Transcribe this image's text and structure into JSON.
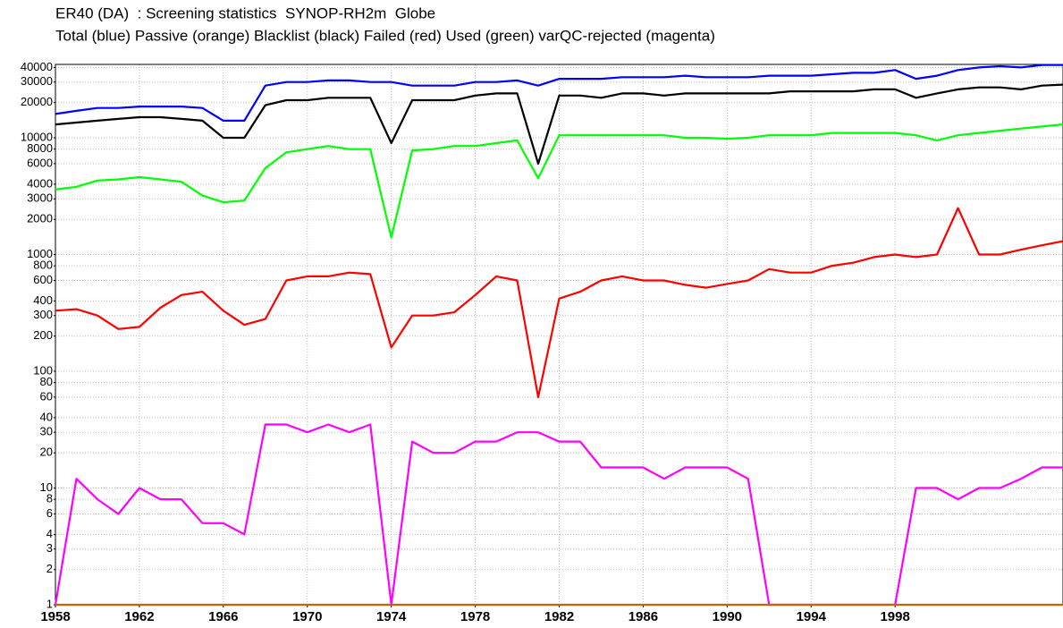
{
  "chart_data": {
    "type": "line",
    "title": "ER40 (DA)  : Screening statistics  SYNOP-RH2m  Globe",
    "subtitle": "Total (blue) Passive (orange) Blacklist (black) Failed (red) Used (green) varQC-rejected (magenta)",
    "log_scale": true,
    "grid": true,
    "xlim": [
      1958,
      2006
    ],
    "ylim": [
      1,
      42500
    ],
    "xticks": [
      1958,
      1962,
      1966,
      1970,
      1974,
      1978,
      1982,
      1986,
      1990,
      1994,
      1998
    ],
    "yticks": [
      1,
      2,
      3,
      4,
      6,
      8,
      10,
      20,
      30,
      40,
      60,
      80,
      100,
      200,
      300,
      400,
      600,
      800,
      1000,
      2000,
      3000,
      4000,
      6000,
      8000,
      10000,
      20000,
      30000,
      40000
    ],
    "x": [
      1958,
      1959,
      1960,
      1961,
      1962,
      1963,
      1964,
      1965,
      1966,
      1967,
      1968,
      1969,
      1970,
      1971,
      1972,
      1973,
      1974,
      1975,
      1976,
      1977,
      1978,
      1979,
      1980,
      1981,
      1982,
      1983,
      1984,
      1985,
      1986,
      1987,
      1988,
      1989,
      1990,
      1991,
      1992,
      1993,
      1994,
      1995,
      1996,
      1997,
      1998,
      1999,
      2000,
      2001,
      2002,
      2003,
      2004,
      2005,
      2006
    ],
    "series": [
      {
        "name": "Total",
        "color": "#0000ff",
        "values": [
          16000,
          17000,
          18000,
          18000,
          18500,
          18500,
          18500,
          18000,
          14000,
          14000,
          28000,
          30000,
          30000,
          31000,
          31000,
          30000,
          30000,
          28000,
          28000,
          28000,
          30000,
          30000,
          31000,
          28000,
          32000,
          32000,
          32000,
          33000,
          33000,
          33000,
          34000,
          33000,
          33000,
          33000,
          34000,
          34000,
          34000,
          35000,
          36000,
          36000,
          38000,
          32000,
          34000,
          38000,
          40000,
          41000,
          40000,
          42000,
          42000
        ]
      },
      {
        "name": "Blacklist",
        "color": "#000000",
        "values": [
          13000,
          13500,
          14000,
          14500,
          15000,
          15000,
          14500,
          14000,
          10000,
          10000,
          19000,
          21000,
          21000,
          22000,
          22000,
          22000,
          9000,
          21000,
          21000,
          21000,
          23000,
          24000,
          24000,
          6000,
          23000,
          23000,
          22000,
          24000,
          24000,
          23000,
          24000,
          24000,
          24000,
          24000,
          24000,
          25000,
          25000,
          25000,
          25000,
          26000,
          26000,
          22000,
          24000,
          26000,
          27000,
          27000,
          26000,
          28000,
          28500
        ]
      },
      {
        "name": "Used",
        "color": "#00ff00",
        "values": [
          3600,
          3800,
          4300,
          4400,
          4600,
          4400,
          4200,
          3200,
          2800,
          2900,
          5500,
          7500,
          8000,
          8500,
          8000,
          8000,
          1400,
          7800,
          8000,
          8500,
          8500,
          9000,
          9500,
          4500,
          10500,
          10500,
          10500,
          10500,
          10500,
          10500,
          10000,
          10000,
          9800,
          10000,
          10500,
          10500,
          10500,
          11000,
          11000,
          11000,
          11000,
          10500,
          9500,
          10500,
          11000,
          11500,
          12000,
          12500,
          13000
        ]
      },
      {
        "name": "Failed",
        "color": "#ff0000",
        "values": [
          330,
          340,
          300,
          230,
          240,
          350,
          450,
          480,
          330,
          250,
          280,
          600,
          650,
          650,
          700,
          680,
          160,
          300,
          300,
          320,
          450,
          650,
          600,
          60,
          420,
          480,
          600,
          650,
          600,
          600,
          550,
          520,
          560,
          600,
          750,
          700,
          700,
          800,
          850,
          950,
          1000,
          950,
          1000,
          2500,
          1000,
          1000,
          1100,
          1200,
          1300
        ]
      },
      {
        "name": "varQC-rejected",
        "color": "#ff00ff",
        "values": [
          1,
          12,
          8,
          6,
          10,
          8,
          8,
          5,
          5,
          4,
          35,
          35,
          30,
          35,
          30,
          35,
          1,
          25,
          20,
          20,
          25,
          25,
          30,
          30,
          25,
          25,
          15,
          15,
          15,
          12,
          15,
          15,
          15,
          12,
          1,
          1,
          1,
          1,
          1,
          1,
          1,
          10,
          10,
          8,
          10,
          10,
          12,
          15,
          15
        ]
      },
      {
        "name": "Passive",
        "color": "#c86400",
        "values": [
          1,
          1,
          1,
          1,
          1,
          1,
          1,
          1,
          1,
          1,
          1,
          1,
          1,
          1,
          1,
          1,
          1,
          1,
          1,
          1,
          1,
          1,
          1,
          1,
          1,
          1,
          1,
          1,
          1,
          1,
          1,
          1,
          1,
          1,
          1,
          1,
          1,
          1,
          1,
          1,
          1,
          1,
          1,
          1,
          1,
          1,
          1,
          1,
          1
        ]
      }
    ]
  }
}
